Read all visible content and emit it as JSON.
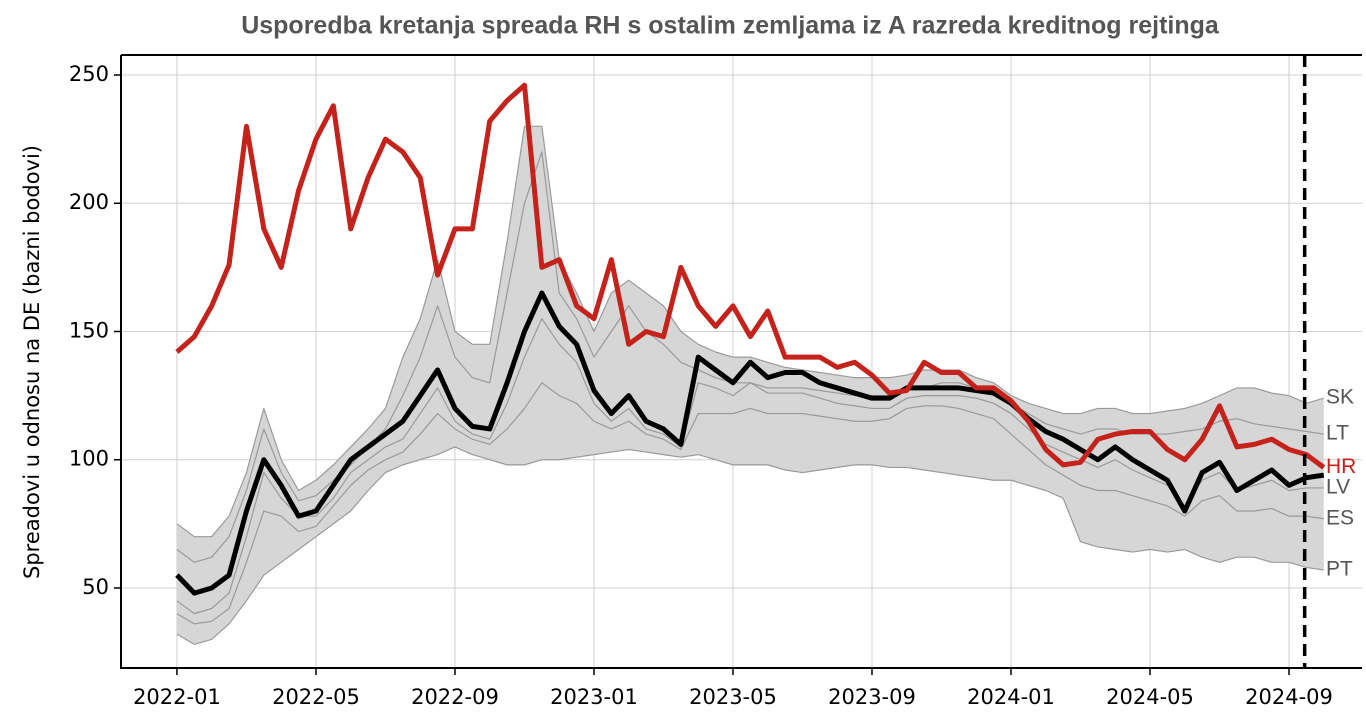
{
  "chart_data": {
    "type": "line",
    "title": "Usporedba kretanja spreada RH s ostalim zemljama iz A razreda kreditnog rejtinga",
    "ylabel": "Spreadovi u odnosu na DE (bazni bodovi)",
    "xlim": [
      -1.61,
      34.1
    ],
    "xticks": [
      {
        "value": 0,
        "label": "2022-01"
      },
      {
        "value": 4,
        "label": "2022-05"
      },
      {
        "value": 8,
        "label": "2022-09"
      },
      {
        "value": 12,
        "label": "2023-01"
      },
      {
        "value": 16,
        "label": "2023-05"
      },
      {
        "value": 20,
        "label": "2023-09"
      },
      {
        "value": 24,
        "label": "2024-01"
      },
      {
        "value": 28,
        "label": "2024-05"
      },
      {
        "value": 32,
        "label": "2024-09"
      }
    ],
    "ylim": [
      18.8,
      257.8
    ],
    "yticks": [
      50,
      100,
      150,
      200,
      250
    ],
    "grid": true,
    "vline": 32.45,
    "band_color": "#d6d6d6",
    "x": [
      0,
      0.5,
      1,
      1.5,
      2,
      2.5,
      3,
      3.5,
      4,
      4.5,
      5,
      5.5,
      6,
      6.5,
      7,
      7.5,
      8,
      8.5,
      9,
      9.5,
      10,
      10.5,
      11,
      11.5,
      12,
      12.5,
      13,
      13.5,
      14,
      14.5,
      15,
      15.5,
      16,
      16.5,
      17,
      17.5,
      18,
      18.5,
      19,
      19.5,
      20,
      20.5,
      21,
      21.5,
      22,
      22.5,
      23,
      23.5,
      24,
      24.5,
      25,
      25.5,
      26,
      26.5,
      27,
      27.5,
      28,
      28.5,
      29,
      29.5,
      30,
      30.5,
      31,
      31.5,
      32,
      32.5,
      33
    ],
    "band_series": [
      {
        "name": "SK",
        "color": "#9a9a9a",
        "values": [
          75,
          70,
          70,
          78,
          95,
          120,
          100,
          88,
          92,
          98,
          105,
          112,
          120,
          140,
          155,
          178,
          150,
          145,
          145,
          185,
          230,
          230,
          178,
          165,
          150,
          165,
          170,
          165,
          160,
          150,
          145,
          142,
          140,
          140,
          138,
          136,
          135,
          134,
          133,
          132,
          132,
          132,
          133,
          135,
          135,
          135,
          132,
          130,
          125,
          122,
          120,
          118,
          118,
          120,
          120,
          118,
          118,
          119,
          120,
          122,
          125,
          128,
          128,
          126,
          125,
          122,
          124
        ]
      },
      {
        "name": "LT",
        "color": "#9a9a9a",
        "values": [
          65,
          60,
          62,
          70,
          88,
          112,
          95,
          84,
          86,
          92,
          98,
          105,
          112,
          125,
          140,
          160,
          140,
          132,
          130,
          165,
          200,
          220,
          165,
          155,
          140,
          150,
          160,
          150,
          145,
          138,
          135,
          132,
          130,
          130,
          128,
          128,
          128,
          127,
          126,
          125,
          125,
          125,
          127,
          128,
          130,
          130,
          128,
          126,
          122,
          118,
          114,
          112,
          110,
          112,
          112,
          110,
          110,
          110,
          111,
          112,
          115,
          116,
          114,
          113,
          112,
          111,
          110
        ]
      },
      {
        "name": "LV",
        "color": "#9a9a9a",
        "values": [
          45,
          40,
          42,
          48,
          70,
          95,
          85,
          78,
          78,
          85,
          95,
          100,
          105,
          108,
          118,
          128,
          115,
          110,
          108,
          122,
          140,
          155,
          145,
          138,
          122,
          115,
          120,
          112,
          110,
          105,
          130,
          128,
          125,
          130,
          126,
          126,
          126,
          124,
          122,
          121,
          120,
          120,
          124,
          125,
          125,
          125,
          124,
          122,
          118,
          112,
          106,
          103,
          100,
          97,
          100,
          96,
          93,
          90,
          82,
          92,
          95,
          88,
          90,
          92,
          88,
          89,
          89
        ]
      },
      {
        "name": "ES",
        "color": "#9a9a9a",
        "values": [
          40,
          36,
          37,
          42,
          60,
          80,
          78,
          72,
          74,
          82,
          90,
          96,
          100,
          103,
          110,
          118,
          112,
          108,
          106,
          112,
          120,
          130,
          125,
          122,
          115,
          112,
          115,
          110,
          108,
          104,
          118,
          118,
          118,
          120,
          118,
          118,
          118,
          117,
          116,
          115,
          115,
          116,
          120,
          121,
          121,
          120,
          118,
          116,
          110,
          104,
          98,
          94,
          90,
          88,
          88,
          86,
          84,
          82,
          78,
          84,
          86,
          80,
          80,
          81,
          78,
          78,
          77
        ]
      },
      {
        "name": "PT",
        "color": "#9a9a9a",
        "values": [
          32,
          28,
          30,
          36,
          45,
          55,
          60,
          65,
          70,
          75,
          80,
          88,
          95,
          98,
          100,
          102,
          105,
          102,
          100,
          98,
          98,
          100,
          100,
          101,
          102,
          103,
          104,
          103,
          102,
          101,
          102,
          100,
          98,
          98,
          98,
          96,
          95,
          96,
          97,
          98,
          98,
          97,
          97,
          96,
          95,
          94,
          93,
          92,
          92,
          90,
          88,
          85,
          68,
          66,
          65,
          64,
          65,
          64,
          65,
          62,
          60,
          62,
          62,
          60,
          60,
          58,
          57
        ]
      }
    ],
    "series": [
      {
        "name": "HR",
        "color": "#c4221a",
        "values": [
          142,
          148,
          160,
          176,
          230,
          190,
          175,
          205,
          225,
          238,
          190,
          210,
          225,
          220,
          210,
          172,
          190,
          190,
          232,
          240,
          246,
          175,
          178,
          160,
          155,
          178,
          145,
          150,
          148,
          175,
          160,
          152,
          160,
          148,
          158,
          140,
          140,
          140,
          136,
          138,
          133,
          126,
          127,
          138,
          134,
          134,
          128,
          128,
          123,
          115,
          104,
          98,
          99,
          108,
          110,
          111,
          111,
          104,
          100,
          108,
          121,
          105,
          106,
          108,
          104,
          102,
          97
        ]
      },
      {
        "color": "#000000",
        "values": [
          55,
          48,
          50,
          55,
          80,
          100,
          90,
          78,
          80,
          90,
          100,
          105,
          110,
          115,
          125,
          135,
          120,
          113,
          112,
          130,
          150,
          165,
          152,
          145,
          127,
          118,
          125,
          115,
          112,
          106,
          140,
          135,
          130,
          138,
          132,
          134,
          134,
          130,
          128,
          126,
          124,
          124,
          128,
          128,
          128,
          128,
          127,
          126,
          122,
          116,
          111,
          108,
          104,
          100,
          105,
          100,
          96,
          92,
          80,
          95,
          99,
          88,
          92,
          96,
          90,
          93,
          94
        ]
      }
    ]
  }
}
